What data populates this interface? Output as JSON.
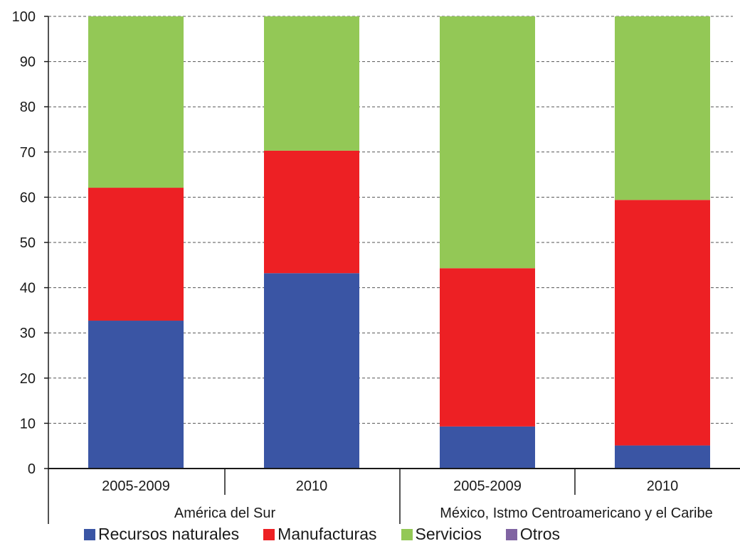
{
  "chart_data": {
    "type": "bar",
    "stacked": true,
    "ylim": [
      0,
      100
    ],
    "yticks": [
      0,
      10,
      20,
      30,
      40,
      50,
      60,
      70,
      80,
      90,
      100
    ],
    "grid": true,
    "legend_position": "bottom",
    "categories": [
      "2005-2009",
      "2010",
      "2005-2009",
      "2010"
    ],
    "groups": [
      {
        "label": "América del Sur",
        "categories": [
          0,
          1
        ]
      },
      {
        "label": "México, Istmo Centroamericano y el Caribe",
        "categories": [
          2,
          3
        ]
      }
    ],
    "series": [
      {
        "name": "Recursos naturales",
        "color": "#3a55a4",
        "values": [
          32.7,
          43.2,
          9.3,
          5.1
        ]
      },
      {
        "name": "Manufacturas",
        "color": "#ed2024",
        "values": [
          29.4,
          27.1,
          35.0,
          54.3
        ]
      },
      {
        "name": "Servicios",
        "color": "#93c856",
        "values": [
          37.9,
          29.7,
          55.7,
          40.6
        ]
      },
      {
        "name": "Otros",
        "color": "#8064a2",
        "values": [
          0,
          0,
          0,
          0
        ]
      }
    ]
  }
}
